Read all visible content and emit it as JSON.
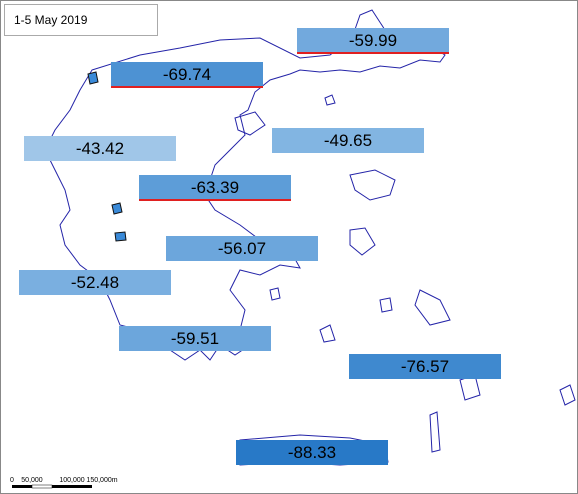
{
  "title": "1-5 May 2019",
  "regions": [
    {
      "value": -59.99,
      "color": "#72a9dd",
      "border_color": "#e02020"
    },
    {
      "value": -69.74,
      "color": "#4d92d3",
      "border_color": "#e02020"
    },
    {
      "value": -43.42,
      "color": "#a0c6e8"
    },
    {
      "value": -49.65,
      "color": "#82b5e2"
    },
    {
      "value": -63.39,
      "color": "#5d9dd8",
      "border_color": "#e02020"
    },
    {
      "value": -56.07,
      "color": "#6ca6dc"
    },
    {
      "value": -52.48,
      "color": "#7aafe0"
    },
    {
      "value": -59.51,
      "color": "#6ca6dc"
    },
    {
      "value": -76.57,
      "color": "#3f89cf"
    },
    {
      "value": -88.33,
      "color": "#2879c7"
    }
  ],
  "scale_bar": {
    "labels": [
      "0",
      "50,000",
      "100,000",
      "150,000m"
    ]
  }
}
